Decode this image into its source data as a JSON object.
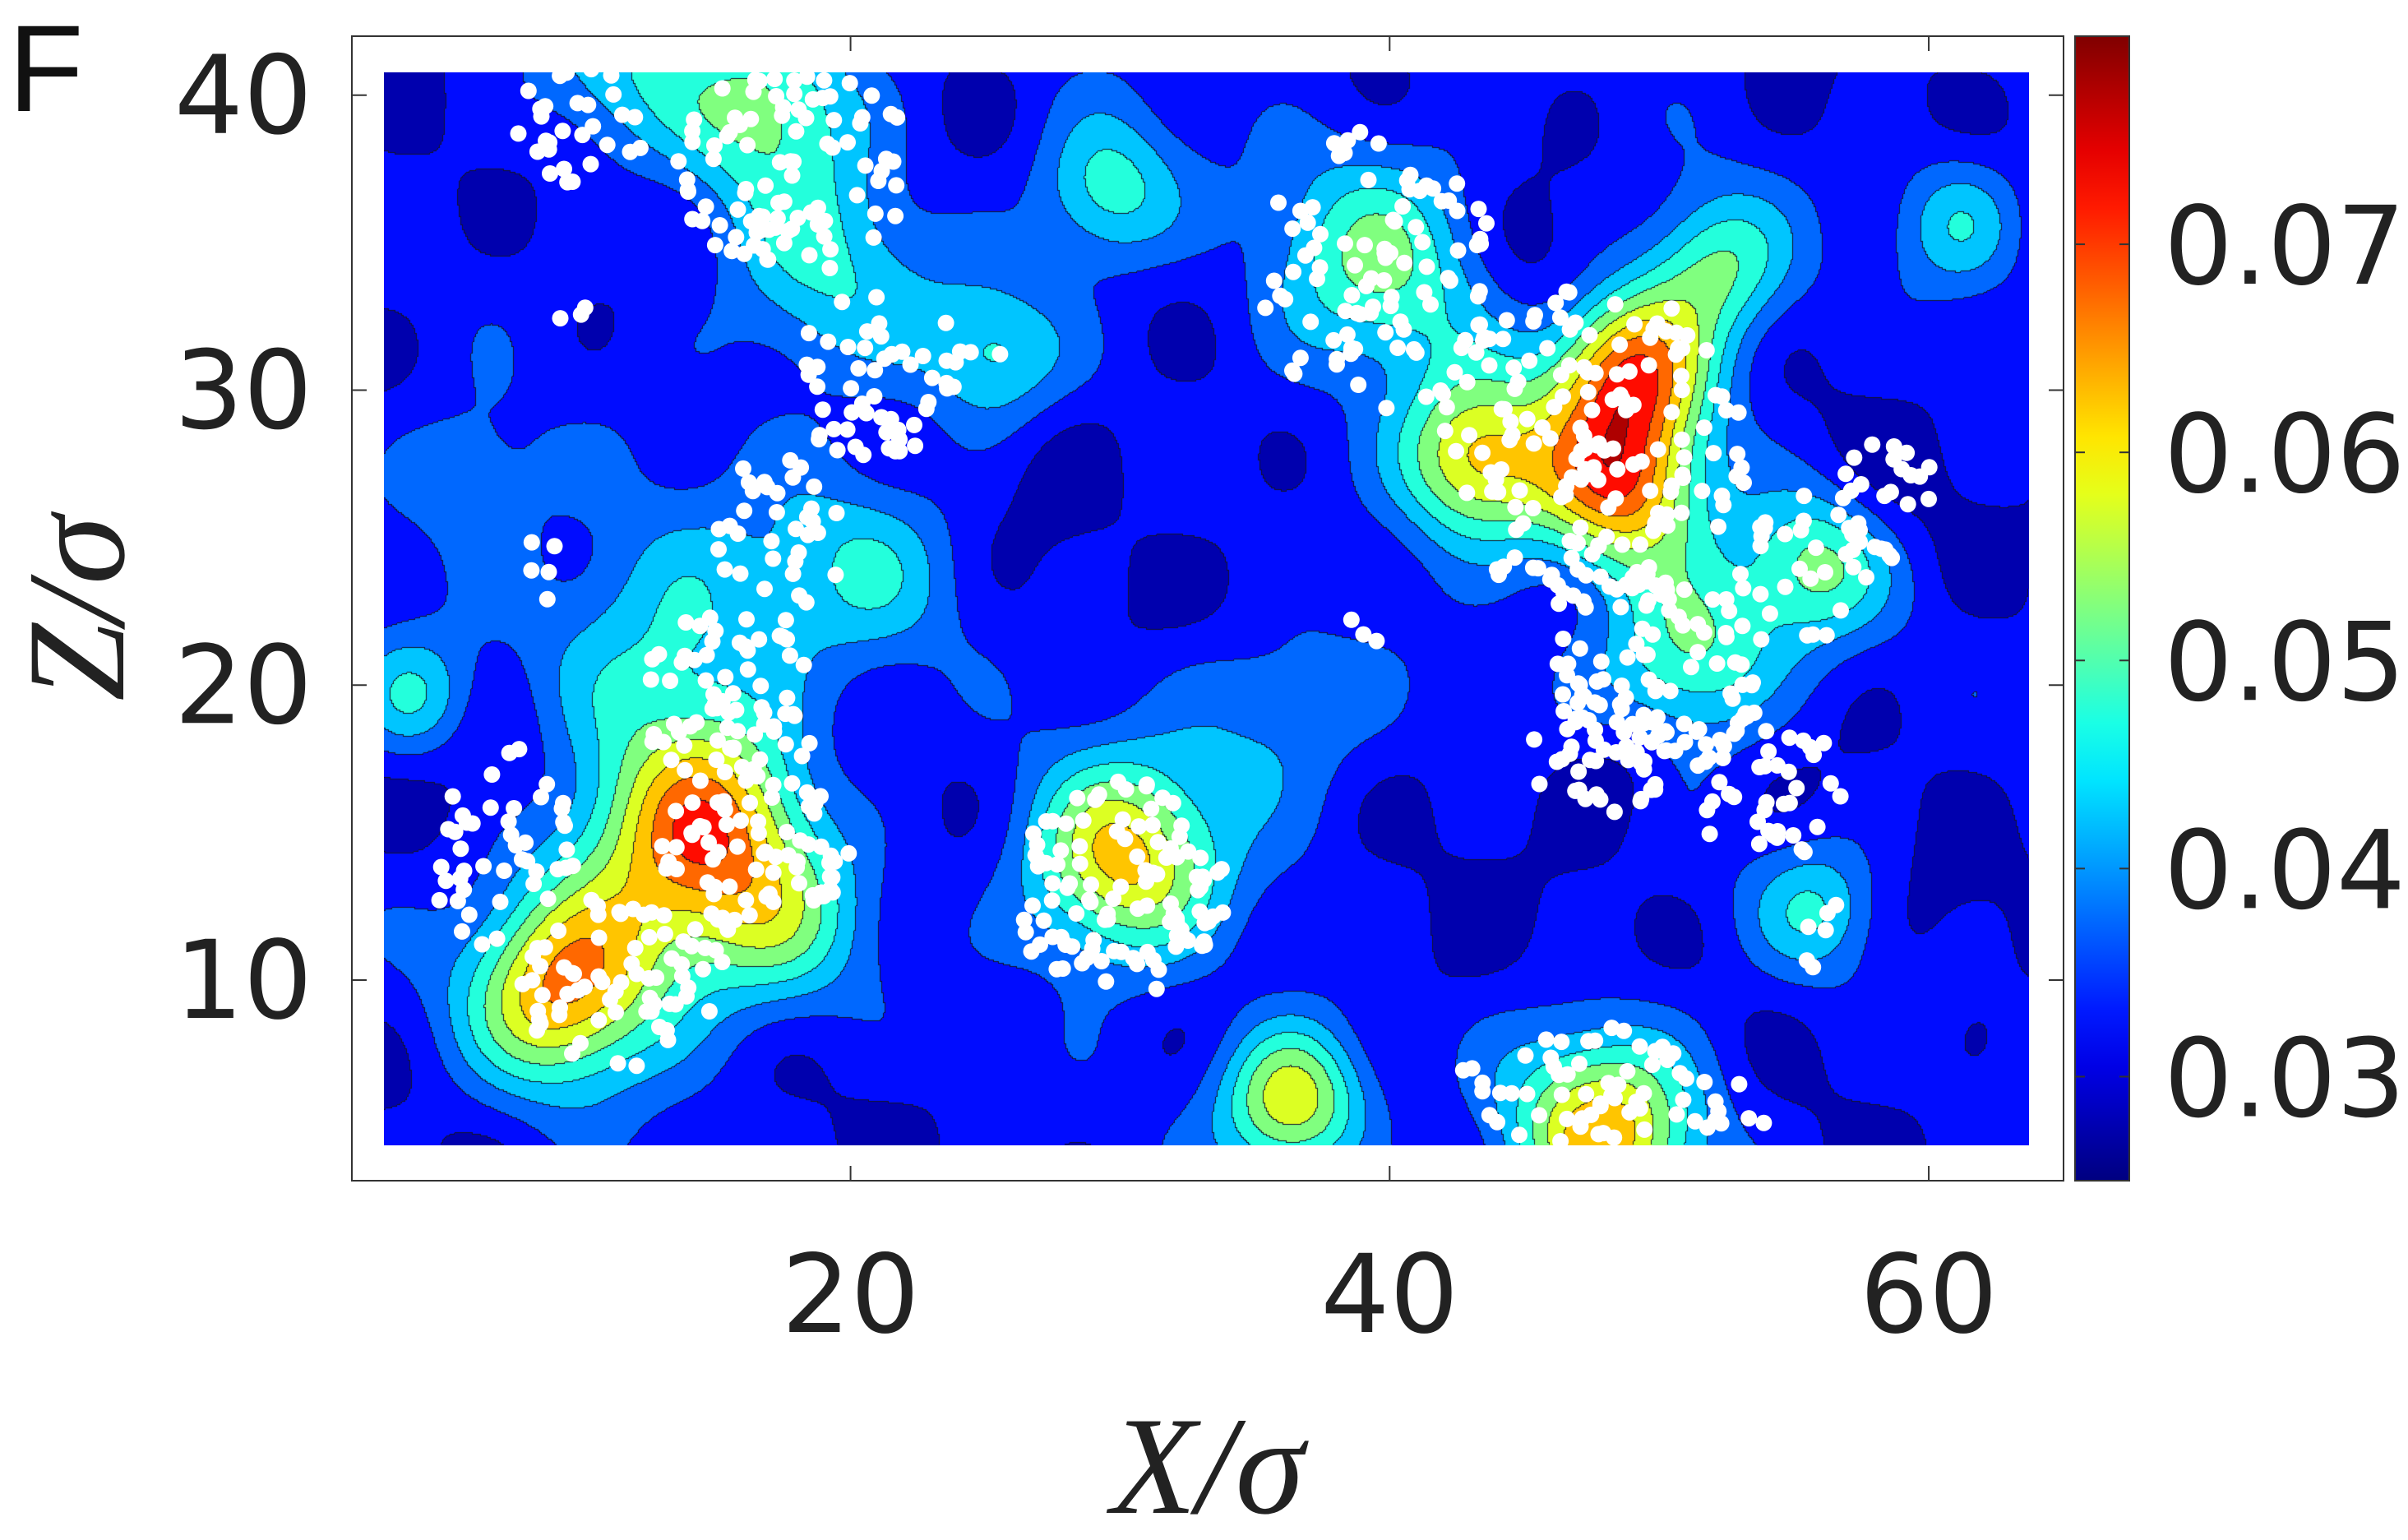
{
  "panel_label": "F",
  "chart_data": {
    "type": "heatmap",
    "subtype": "filled-contour with scatter overlay",
    "xlabel": "X/σ",
    "ylabel": "Z/σ",
    "xlim": [
      5,
      63
    ],
    "ylim": [
      4.5,
      40.5
    ],
    "axes_box": {
      "x": [
        1.5,
        65
      ],
      "y": [
        3.2,
        42
      ]
    },
    "xticks": [
      20,
      40,
      60
    ],
    "xtick_labels": [
      "20",
      "40",
      "60"
    ],
    "yticks": [
      10,
      20,
      30,
      40
    ],
    "ytick_labels": [
      "10",
      "20",
      "30",
      "40"
    ],
    "colorbar": {
      "colormap": "jet",
      "range": [
        0.025,
        0.08
      ],
      "ticks": [
        0.03,
        0.04,
        0.05,
        0.06,
        0.07
      ],
      "tick_labels": [
        "0.03",
        "0.04",
        "0.05",
        "0.06",
        "0.07"
      ]
    },
    "contour_levels": [
      0.03,
      0.035,
      0.04,
      0.045,
      0.05,
      0.055,
      0.06,
      0.065,
      0.07,
      0.075
    ],
    "background_value": 0.031,
    "hotspots": [
      {
        "x": 18.5,
        "y": 39.5,
        "value": 0.051,
        "spread": 2.4
      },
      {
        "x": 13.0,
        "y": 40.5,
        "value": 0.042,
        "spread": 2.0
      },
      {
        "x": 20.5,
        "y": 33.5,
        "value": 0.045,
        "spread": 2.6
      },
      {
        "x": 26.5,
        "y": 31.0,
        "value": 0.046,
        "spread": 1.8
      },
      {
        "x": 30.5,
        "y": 36.5,
        "value": 0.049,
        "spread": 1.8
      },
      {
        "x": 40.0,
        "y": 34.0,
        "value": 0.05,
        "spread": 2.8
      },
      {
        "x": 43.5,
        "y": 27.5,
        "value": 0.062,
        "spread": 2.0
      },
      {
        "x": 49.0,
        "y": 30.5,
        "value": 0.067,
        "spread": 2.0
      },
      {
        "x": 48.5,
        "y": 26.5,
        "value": 0.064,
        "spread": 2.0
      },
      {
        "x": 52.0,
        "y": 34.0,
        "value": 0.05,
        "spread": 1.8
      },
      {
        "x": 55.5,
        "y": 24.0,
        "value": 0.05,
        "spread": 1.8
      },
      {
        "x": 51.0,
        "y": 21.0,
        "value": 0.052,
        "spread": 2.2
      },
      {
        "x": 60.5,
        "y": 35.5,
        "value": 0.044,
        "spread": 1.6
      },
      {
        "x": 15.0,
        "y": 21.5,
        "value": 0.046,
        "spread": 3.2
      },
      {
        "x": 16.5,
        "y": 15.5,
        "value": 0.058,
        "spread": 2.4
      },
      {
        "x": 11.0,
        "y": 9.5,
        "value": 0.056,
        "spread": 2.2
      },
      {
        "x": 13.5,
        "y": 12.0,
        "value": 0.05,
        "spread": 3.0
      },
      {
        "x": 19.0,
        "y": 12.0,
        "value": 0.046,
        "spread": 2.2
      },
      {
        "x": 31.0,
        "y": 14.0,
        "value": 0.062,
        "spread": 2.4
      },
      {
        "x": 6.0,
        "y": 19.5,
        "value": 0.045,
        "spread": 1.5
      },
      {
        "x": 37.0,
        "y": 6.0,
        "value": 0.06,
        "spread": 1.8
      },
      {
        "x": 48.0,
        "y": 5.0,
        "value": 0.062,
        "spread": 2.4
      },
      {
        "x": 55.5,
        "y": 12.5,
        "value": 0.044,
        "spread": 1.6
      },
      {
        "x": 36.5,
        "y": 19.0,
        "value": 0.042,
        "spread": 2.4
      },
      {
        "x": 22.0,
        "y": 24.0,
        "value": 0.043,
        "spread": 2.4
      },
      {
        "x": 8.0,
        "y": 27.0,
        "value": 0.04,
        "spread": 2.0
      }
    ],
    "coldspots": [
      {
        "x": 9.0,
        "y": 17.5,
        "value": 0.027,
        "spread": 2.0
      },
      {
        "x": 28.5,
        "y": 28.0,
        "value": 0.028,
        "spread": 2.0
      },
      {
        "x": 45.5,
        "y": 34.0,
        "value": 0.026,
        "spread": 1.8
      },
      {
        "x": 48.5,
        "y": 17.0,
        "value": 0.026,
        "spread": 1.6
      },
      {
        "x": 58.5,
        "y": 26.5,
        "value": 0.029,
        "spread": 1.8
      },
      {
        "x": 36.0,
        "y": 23.0,
        "value": 0.028,
        "spread": 2.0
      },
      {
        "x": 42.0,
        "y": 10.0,
        "value": 0.029,
        "spread": 2.0
      },
      {
        "x": 60.0,
        "y": 12.0,
        "value": 0.029,
        "spread": 1.8
      }
    ],
    "particle_clusters": [
      {
        "cx": 18.0,
        "cy": 37.5,
        "rx": 4.5,
        "ry": 3.5,
        "n": 95
      },
      {
        "cx": 10.0,
        "cy": 39.0,
        "rx": 2.5,
        "ry": 2.0,
        "n": 30
      },
      {
        "cx": 21.0,
        "cy": 30.5,
        "rx": 3.2,
        "ry": 3.0,
        "n": 55
      },
      {
        "cx": 17.5,
        "cy": 25.0,
        "rx": 2.5,
        "ry": 3.0,
        "n": 35
      },
      {
        "cx": 15.5,
        "cy": 19.5,
        "rx": 3.5,
        "ry": 3.0,
        "n": 70
      },
      {
        "cx": 16.5,
        "cy": 14.5,
        "rx": 3.5,
        "ry": 3.0,
        "n": 75
      },
      {
        "cx": 11.5,
        "cy": 10.0,
        "rx": 4.0,
        "ry": 3.0,
        "n": 70
      },
      {
        "cx": 7.0,
        "cy": 14.5,
        "rx": 2.8,
        "ry": 3.5,
        "n": 45
      },
      {
        "cx": 30.0,
        "cy": 13.0,
        "rx": 4.0,
        "ry": 3.8,
        "n": 110
      },
      {
        "cx": 39.5,
        "cy": 34.0,
        "rx": 4.5,
        "ry": 4.8,
        "n": 95
      },
      {
        "cx": 47.5,
        "cy": 28.0,
        "rx": 6.0,
        "ry": 5.5,
        "n": 170
      },
      {
        "cx": 50.0,
        "cy": 20.5,
        "rx": 4.0,
        "ry": 3.5,
        "n": 85
      },
      {
        "cx": 48.0,
        "cy": 17.5,
        "rx": 2.8,
        "ry": 2.0,
        "n": 45
      },
      {
        "cx": 54.0,
        "cy": 16.5,
        "rx": 3.0,
        "ry": 2.5,
        "n": 40
      },
      {
        "cx": 55.5,
        "cy": 24.0,
        "rx": 2.5,
        "ry": 2.5,
        "n": 30
      },
      {
        "cx": 58.5,
        "cy": 26.5,
        "rx": 1.7,
        "ry": 2.2,
        "n": 24
      },
      {
        "cx": 47.0,
        "cy": 6.5,
        "rx": 4.5,
        "ry": 2.0,
        "n": 55
      },
      {
        "cx": 52.0,
        "cy": 5.5,
        "rx": 2.0,
        "ry": 1.3,
        "n": 10
      },
      {
        "cx": 56.0,
        "cy": 11.5,
        "rx": 0.8,
        "ry": 1.5,
        "n": 6
      },
      {
        "cx": 39.0,
        "cy": 22.0,
        "rx": 0.8,
        "ry": 0.8,
        "n": 3
      },
      {
        "cx": 9.5,
        "cy": 33.0,
        "rx": 0.8,
        "ry": 0.8,
        "n": 3
      },
      {
        "cx": 9.0,
        "cy": 24.0,
        "rx": 1.2,
        "ry": 1.2,
        "n": 5
      },
      {
        "cx": 25.0,
        "cy": 31.5,
        "rx": 0.8,
        "ry": 0.8,
        "n": 2
      }
    ]
  }
}
